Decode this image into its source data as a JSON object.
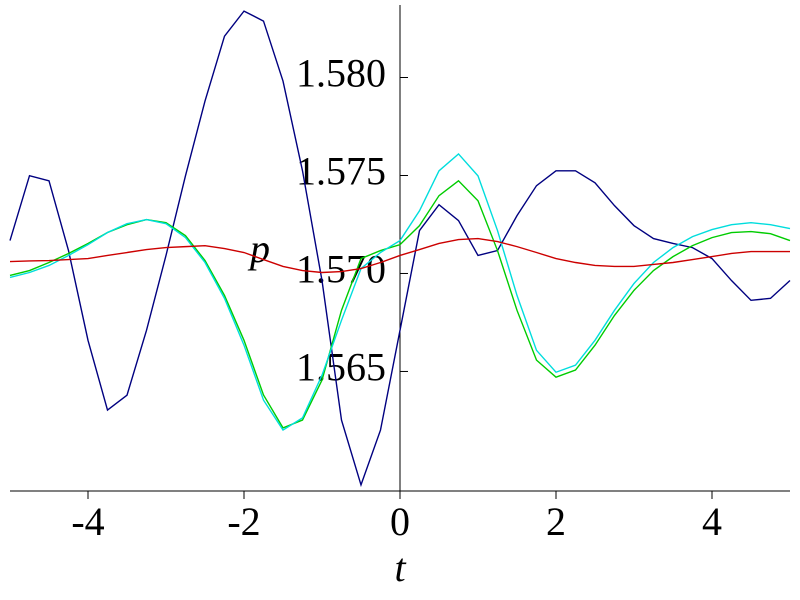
{
  "chart_data": {
    "type": "line",
    "x_label": "t",
    "y_label": "p",
    "x": [
      -5,
      -4.75,
      -4.5,
      -4.25,
      -4,
      -3.75,
      -3.5,
      -3.25,
      -3,
      -2.75,
      -2.5,
      -2.25,
      -2,
      -1.75,
      -1.5,
      -1.25,
      -1,
      -0.75,
      -0.5,
      -0.25,
      0,
      0.25,
      0.5,
      0.75,
      1,
      1.25,
      1.5,
      1.75,
      2,
      2.25,
      2.5,
      2.75,
      3,
      3.25,
      3.5,
      3.75,
      4,
      4.25,
      4.5,
      4.75,
      5
    ],
    "series": [
      {
        "color": "#000080",
        "values": [
          1.57168,
          1.57499,
          1.57473,
          1.57117,
          1.56659,
          1.56303,
          1.56379,
          1.5671,
          1.57092,
          1.57499,
          1.5788,
          1.58211,
          1.58339,
          1.58288,
          1.57982,
          1.57524,
          1.56964,
          1.56252,
          1.55921,
          1.56201,
          1.5671,
          1.57219,
          1.57351,
          1.5727,
          1.57092,
          1.57117,
          1.57295,
          1.57448,
          1.57524,
          1.57524,
          1.57463,
          1.57346,
          1.57244,
          1.57178,
          1.57153,
          1.57132,
          1.57076,
          1.56964,
          1.56863,
          1.56873,
          1.56964
        ]
      },
      {
        "color": "#00cc00",
        "values": [
          1.5699,
          1.57015,
          1.57056,
          1.57102,
          1.57153,
          1.57209,
          1.57249,
          1.57275,
          1.57259,
          1.57193,
          1.57066,
          1.56888,
          1.56659,
          1.5638,
          1.56212,
          1.56252,
          1.56456,
          1.56812,
          1.57076,
          1.57117,
          1.57147,
          1.57244,
          1.57397,
          1.57473,
          1.57371,
          1.57117,
          1.56812,
          1.56558,
          1.56471,
          1.56507,
          1.56634,
          1.56786,
          1.56914,
          1.57015,
          1.57086,
          1.57142,
          1.57183,
          1.57209,
          1.57214,
          1.57203,
          1.57168
        ]
      },
      {
        "color": "#00dddd",
        "values": [
          1.5698,
          1.57005,
          1.57041,
          1.57092,
          1.57147,
          1.57209,
          1.57254,
          1.57275,
          1.57254,
          1.57183,
          1.57056,
          1.56873,
          1.56634,
          1.56354,
          1.56201,
          1.56263,
          1.56481,
          1.56761,
          1.57025,
          1.57107,
          1.57168,
          1.5732,
          1.57524,
          1.5761,
          1.57498,
          1.57219,
          1.56888,
          1.56608,
          1.56496,
          1.56532,
          1.56659,
          1.56812,
          1.56949,
          1.57056,
          1.57132,
          1.57188,
          1.57224,
          1.57249,
          1.57259,
          1.57249,
          1.57229
        ]
      },
      {
        "color": "#cc0000",
        "values": [
          1.57061,
          1.57064,
          1.57066,
          1.57071,
          1.57076,
          1.57092,
          1.57107,
          1.57122,
          1.57132,
          1.57137,
          1.57142,
          1.57127,
          1.57107,
          1.57071,
          1.57036,
          1.57015,
          1.57005,
          1.5701,
          1.57025,
          1.57056,
          1.57092,
          1.57122,
          1.57153,
          1.57173,
          1.57178,
          1.57163,
          1.57137,
          1.57107,
          1.57076,
          1.57056,
          1.57041,
          1.57036,
          1.57036,
          1.57046,
          1.57056,
          1.57071,
          1.57086,
          1.57102,
          1.57112,
          1.57112,
          1.57112
        ]
      }
    ],
    "xlim": [
      -5,
      5
    ],
    "ylim": [
      1.5589,
      1.5837
    ],
    "xticks": [
      -4,
      -2,
      0,
      2,
      4
    ],
    "yticks": [
      {
        "value": 1.58,
        "label": "1.580"
      },
      1.575,
      {
        "value": 1.57,
        "label": "1.570"
      },
      1.565
    ]
  }
}
